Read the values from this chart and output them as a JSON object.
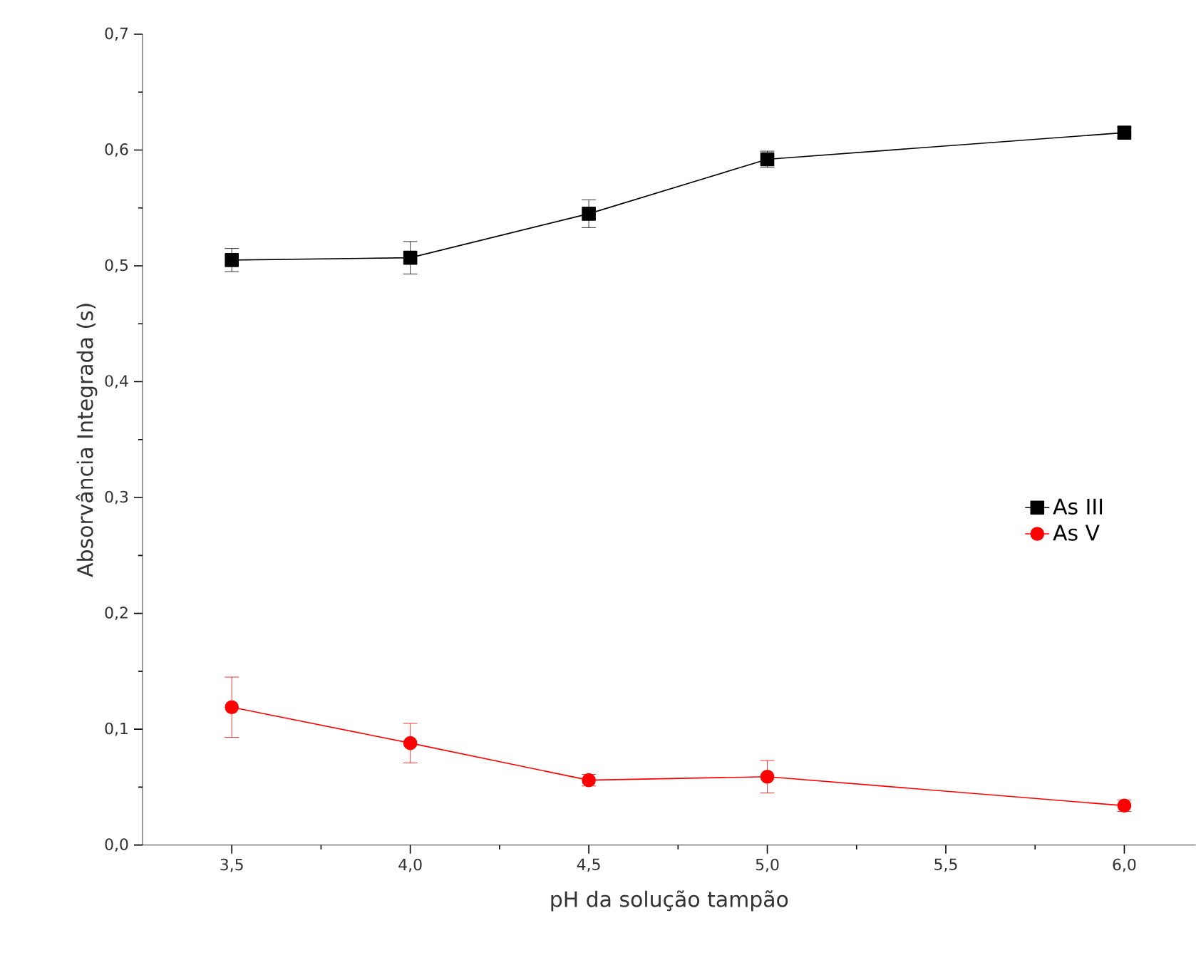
{
  "chart_data": {
    "type": "line",
    "xlabel": "pH da solução tampão",
    "ylabel": "Absorvância Integrada (s)",
    "x": [
      3.5,
      4.0,
      4.5,
      5.0,
      6.0
    ],
    "series": [
      {
        "name": "As III",
        "color": "#000000",
        "marker": "square",
        "values": [
          0.505,
          0.507,
          0.545,
          0.592,
          0.615
        ],
        "errors": [
          0.01,
          0.014,
          0.012,
          0.007,
          0.005
        ]
      },
      {
        "name": "As V",
        "color": "#ff0000",
        "marker": "circle",
        "values": [
          0.119,
          0.088,
          0.056,
          0.059,
          0.034
        ],
        "errors": [
          0.026,
          0.017,
          0.005,
          0.014,
          0.005
        ]
      }
    ],
    "xlim": [
      3.25,
      6.2
    ],
    "ylim": [
      0,
      0.7
    ],
    "xticks": [
      {
        "value": 3.5,
        "label": "3,5"
      },
      {
        "value": 4.0,
        "label": "4,0"
      },
      {
        "value": 4.5,
        "label": "4,5"
      },
      {
        "value": 5.0,
        "label": "5,0"
      },
      {
        "value": 5.5,
        "label": "5,5"
      },
      {
        "value": 6.0,
        "label": "6,0"
      }
    ],
    "yticks": [
      {
        "value": 0,
        "label": "0,0"
      },
      {
        "value": 0.1,
        "label": "0,1"
      },
      {
        "value": 0.2,
        "label": "0,2"
      },
      {
        "value": 0.3,
        "label": "0,3"
      },
      {
        "value": 0.4,
        "label": "0,4"
      },
      {
        "value": 0.5,
        "label": "0,5"
      },
      {
        "value": 0.6,
        "label": "0,6"
      },
      {
        "value": 0.7,
        "label": "0,7"
      }
    ],
    "grid": false,
    "legend": "right",
    "line_style": "solid"
  }
}
